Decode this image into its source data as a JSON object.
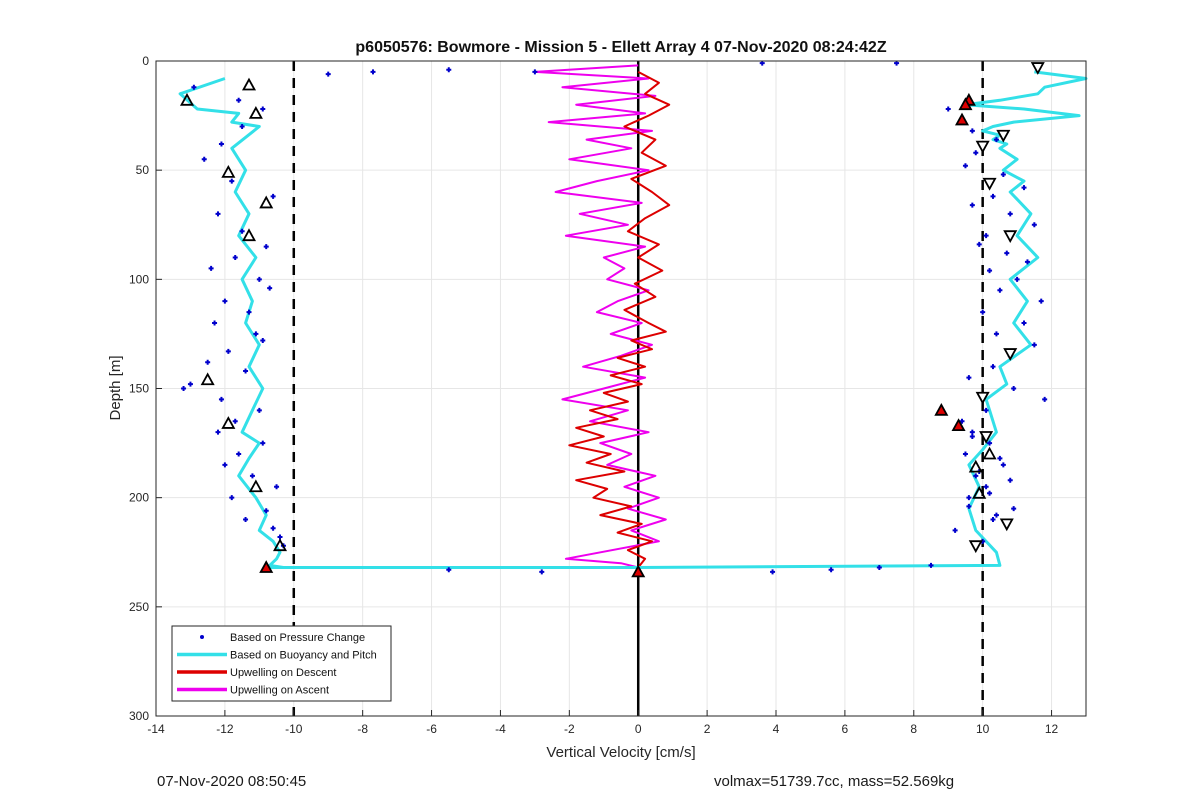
{
  "chart_data": {
    "type": "scatter",
    "title": "p6050576: Bowmore - Mission 5 - Ellett Array 4 07-Nov-2020 08:24:42Z",
    "xlabel": "Vertical Velocity [cm/s]",
    "ylabel": "Depth [m]",
    "xlim": [
      -14,
      13
    ],
    "ylim": [
      0,
      300
    ],
    "y_reversed": true,
    "grid": true,
    "legend_position": "bottom-left",
    "x_ticks": [
      -14,
      -12,
      -10,
      -8,
      -6,
      -4,
      -2,
      0,
      2,
      4,
      6,
      8,
      10,
      12
    ],
    "y_ticks": [
      0,
      50,
      100,
      150,
      200,
      250,
      300
    ],
    "reference_lines": [
      {
        "x": -10,
        "style": "dashed",
        "color": "#000000"
      },
      {
        "x": 10,
        "style": "dashed",
        "color": "#000000"
      },
      {
        "x": 0,
        "style": "solid",
        "color": "#000000"
      }
    ],
    "series": [
      {
        "name": "Based on Pressure Change",
        "kind": "points",
        "color": "#0000cc",
        "x": [
          -9.0,
          -7.7,
          -5.5,
          -3.0,
          3.6,
          7.5,
          -12.9,
          -11.6,
          -10.9,
          -11.5,
          -12.1,
          -12.6,
          -11.8,
          -10.6,
          -12.2,
          -11.5,
          -10.8,
          -11.7,
          -12.4,
          -11.0,
          -10.7,
          -12.0,
          -11.3,
          -12.3,
          -11.1,
          -10.9,
          -11.9,
          -12.5,
          -11.4,
          -13.0,
          -13.2,
          -12.1,
          -11.0,
          -11.7,
          -12.2,
          -10.9,
          -11.6,
          -12.0,
          -11.2,
          -10.5,
          -11.8,
          -10.8,
          -11.4,
          -10.6,
          -10.4,
          -10.3,
          -5.5,
          -2.8,
          3.9,
          5.6,
          7.0,
          8.5,
          9.0,
          9.4,
          9.7,
          10.4,
          9.8,
          9.5,
          10.6,
          11.2,
          10.3,
          9.7,
          10.8,
          11.5,
          10.1,
          9.9,
          10.7,
          11.3,
          10.2,
          11.0,
          10.5,
          11.7,
          10.0,
          11.2,
          10.4,
          11.5,
          10.8,
          10.3,
          9.6,
          10.9,
          11.8,
          10.1,
          9.4,
          9.7,
          10.2,
          9.5,
          10.6,
          9.8,
          10.1,
          9.6,
          10.9,
          10.3,
          9.2,
          10.0,
          9.7,
          10.5,
          9.9,
          10.8,
          10.2,
          9.6,
          10.4
        ],
        "y": [
          6,
          5,
          4,
          5,
          1,
          1,
          12,
          18,
          22,
          30,
          38,
          45,
          55,
          62,
          70,
          78,
          85,
          90,
          95,
          100,
          104,
          110,
          115,
          120,
          125,
          128,
          133,
          138,
          142,
          148,
          150,
          155,
          160,
          165,
          170,
          175,
          180,
          185,
          190,
          195,
          200,
          206,
          210,
          214,
          218,
          222,
          233,
          234,
          234,
          233,
          232,
          231,
          22,
          27,
          32,
          36,
          42,
          48,
          52,
          58,
          62,
          66,
          70,
          75,
          80,
          84,
          88,
          92,
          96,
          100,
          105,
          110,
          115,
          120,
          125,
          130,
          135,
          140,
          145,
          150,
          155,
          160,
          165,
          170,
          175,
          180,
          185,
          190,
          195,
          200,
          205,
          210,
          215,
          220,
          172,
          182,
          188,
          192,
          198,
          204,
          208
        ]
      },
      {
        "name": "Based on Buoyancy and Pitch",
        "kind": "line",
        "color": "#33e0e8",
        "x": [
          -12.0,
          -13.3,
          -12.8,
          -11.6,
          -11.8,
          -11.0,
          -11.8,
          -11.4,
          -11.7,
          -11.3,
          -11.6,
          -11.1,
          -11.5,
          -11.2,
          -11.4,
          -11.0,
          -11.3,
          -10.9,
          -11.2,
          -11.5,
          -11.0,
          -11.3,
          -11.6,
          -11.1,
          -10.8,
          -11.0,
          -10.6,
          -10.4,
          -10.5,
          -10.7,
          -10.3,
          -10.7,
          0,
          10.5,
          10.4,
          9.8,
          9.6,
          9.9,
          9.6,
          10.0,
          10.4,
          10.2,
          10.1,
          10.7,
          10.5,
          11.4,
          10.9,
          11.3,
          10.8,
          11.6,
          11.0,
          11.4,
          10.8,
          11.2,
          10.6,
          11.0,
          10.5,
          10.7,
          10.3,
          10.5,
          10.0,
          10.3,
          10.9,
          12.8,
          11.2,
          9.5,
          10.5,
          11.6,
          11.8,
          13.0,
          11.5
        ],
        "y": [
          8,
          15,
          22,
          24,
          28,
          30,
          40,
          50,
          60,
          70,
          80,
          90,
          100,
          110,
          120,
          130,
          140,
          150,
          160,
          170,
          175,
          182,
          190,
          200,
          208,
          215,
          220,
          225,
          228,
          231,
          232,
          232,
          232,
          231,
          225,
          215,
          205,
          195,
          185,
          178,
          170,
          160,
          155,
          148,
          140,
          130,
          120,
          110,
          100,
          90,
          80,
          70,
          60,
          55,
          50,
          45,
          40,
          38,
          36,
          34,
          32,
          30,
          28,
          25,
          22,
          20,
          18,
          15,
          12,
          8,
          5
        ]
      },
      {
        "name": "Upwelling on Descent",
        "kind": "line",
        "color": "#dd0000",
        "x": [
          0.0,
          0.6,
          0.2,
          0.9,
          0.3,
          -0.4,
          0.5,
          0.1,
          0.8,
          -0.2,
          0.4,
          0.9,
          0.2,
          -0.3,
          0.6,
          0.0,
          0.7,
          -0.1,
          0.5,
          -0.4,
          0.3,
          0.8,
          -0.2,
          0.4,
          -0.6,
          0.2,
          -0.8,
          0.1,
          -1.0,
          -0.3,
          -1.4,
          -0.6,
          -1.8,
          -1.0,
          -2.0,
          -0.8,
          -1.5,
          -0.4,
          -1.8,
          -0.9,
          -1.3,
          -0.2,
          -1.1,
          0.1,
          -0.6,
          0.4,
          -0.3,
          0.2,
          0.0
        ],
        "y": [
          5,
          10,
          15,
          20,
          25,
          30,
          36,
          42,
          48,
          54,
          60,
          66,
          72,
          78,
          84,
          90,
          96,
          102,
          108,
          114,
          120,
          124,
          128,
          132,
          136,
          140,
          144,
          148,
          152,
          156,
          160,
          164,
          168,
          172,
          176,
          180,
          184,
          188,
          192,
          196,
          200,
          204,
          208,
          212,
          216,
          220,
          224,
          228,
          232
        ]
      },
      {
        "name": "Upwelling on Ascent",
        "kind": "line",
        "color": "#ee00ee",
        "x": [
          0.0,
          -3.0,
          0.3,
          -2.2,
          0.5,
          -1.8,
          0.2,
          -2.6,
          0.4,
          -1.5,
          -0.2,
          -2.0,
          0.3,
          -1.2,
          -2.4,
          0.1,
          -1.7,
          -0.3,
          -2.1,
          0.2,
          -1.0,
          -0.4,
          -0.9,
          0.3,
          -0.6,
          -1.2,
          0.1,
          -0.8,
          0.4,
          -0.5,
          -1.6,
          0.2,
          -1.0,
          -2.2,
          -0.3,
          -1.4,
          0.3,
          -1.1,
          -0.2,
          -0.9,
          0.5,
          -0.4,
          0.6,
          -0.3,
          0.8,
          -0.2,
          0.6,
          -2.1,
          -0.5,
          0.0
        ],
        "y": [
          2,
          5,
          8,
          12,
          16,
          20,
          24,
          28,
          32,
          36,
          40,
          45,
          50,
          55,
          60,
          65,
          70,
          75,
          80,
          85,
          90,
          95,
          100,
          105,
          110,
          115,
          120,
          125,
          130,
          135,
          140,
          145,
          150,
          155,
          160,
          165,
          170,
          175,
          180,
          185,
          190,
          195,
          200,
          205,
          210,
          215,
          220,
          228,
          230,
          232
        ]
      },
      {
        "name": "",
        "kind": "markers-up-red",
        "color": "#dd0000",
        "x": [
          -10.8,
          9.6,
          9.5,
          9.4,
          8.8,
          9.3,
          0.0
        ],
        "y": [
          232,
          18,
          20,
          27,
          160,
          167,
          234
        ]
      },
      {
        "name": "",
        "kind": "markers-up-open",
        "color": "#000000",
        "x": [
          -11.3,
          -13.1,
          -11.1,
          -11.9,
          -10.8,
          -11.3,
          -12.5,
          -11.9,
          -11.1,
          -10.4,
          9.8,
          9.9,
          10.2
        ],
        "y": [
          11,
          18,
          24,
          51,
          65,
          80,
          146,
          166,
          195,
          222,
          186,
          198,
          180
        ]
      },
      {
        "name": "",
        "kind": "markers-down-open",
        "color": "#000000",
        "x": [
          11.6,
          10.6,
          10.0,
          10.2,
          10.8,
          10.8,
          10.0,
          10.1,
          10.7,
          9.8
        ],
        "y": [
          3,
          34,
          39,
          56,
          80,
          134,
          154,
          172,
          212,
          222
        ]
      }
    ],
    "legend_entries": [
      "Based on Pressure Change",
      "Based on Buoyancy and Pitch",
      "Upwelling on Descent",
      "Upwelling on Ascent"
    ]
  },
  "footer": {
    "left": "07-Nov-2020 08:50:45",
    "right": "volmax=51739.7cc, mass=52.569kg"
  }
}
